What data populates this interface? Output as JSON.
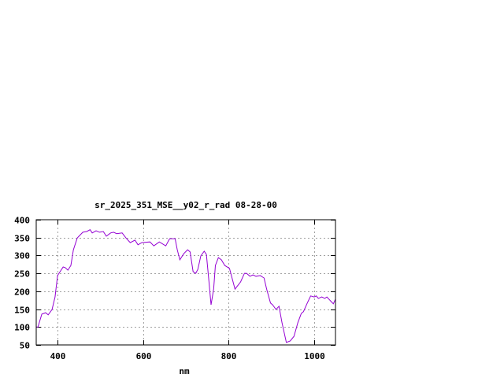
{
  "chart_data": {
    "type": "line",
    "title": "sr_2025_351_MSE__y02_r_rad 08-28-00",
    "xlabel": "nm",
    "ylabel": "",
    "xlim": [
      350,
      1050
    ],
    "ylim": [
      50,
      400
    ],
    "xticks": [
      400,
      600,
      800,
      1000
    ],
    "yticks": [
      50,
      100,
      150,
      200,
      250,
      300,
      350,
      400
    ],
    "grid": true,
    "legend": "none",
    "line_color": "#9400d3",
    "series": [
      {
        "x": [
          350,
          354,
          363,
          372,
          378,
          387,
          394,
          400,
          413,
          418,
          424,
          431,
          437,
          446,
          459,
          468,
          476,
          481,
          490,
          498,
          507,
          514,
          524,
          531,
          538,
          551,
          560,
          570,
          581,
          588,
          597,
          616,
          625,
          638,
          653,
          662,
          675,
          680,
          686,
          695,
          704,
          710,
          717,
          723,
          728,
          735,
          743,
          748,
          754,
          759,
          765,
          769,
          776,
          783,
          791,
          802,
          815,
          828,
          837,
          842,
          850,
          857,
          864,
          874,
          883,
          889,
          898,
          903,
          911,
          918,
          925,
          935,
          944,
          953,
          962,
          970,
          975,
          984,
          992,
          1000,
          1005,
          1010,
          1018,
          1025,
          1030,
          1040,
          1045,
          1050
        ],
        "values": [
          100,
          100,
          136,
          140,
          134,
          149,
          184,
          244,
          268,
          266,
          259,
          272,
          316,
          349,
          365,
          367,
          372,
          363,
          369,
          365,
          367,
          354,
          363,
          365,
          361,
          363,
          349,
          336,
          343,
          330,
          336,
          338,
          327,
          338,
          327,
          347,
          347,
          316,
          288,
          305,
          316,
          310,
          255,
          250,
          261,
          299,
          312,
          303,
          228,
          162,
          206,
          272,
          294,
          288,
          272,
          264,
          206,
          226,
          250,
          250,
          242,
          246,
          242,
          244,
          237,
          206,
          167,
          162,
          149,
          158,
          112,
          57,
          61,
          74,
          112,
          138,
          143,
          167,
          187,
          184,
          187,
          180,
          184,
          180,
          184,
          171,
          165,
          178
        ]
      }
    ]
  }
}
